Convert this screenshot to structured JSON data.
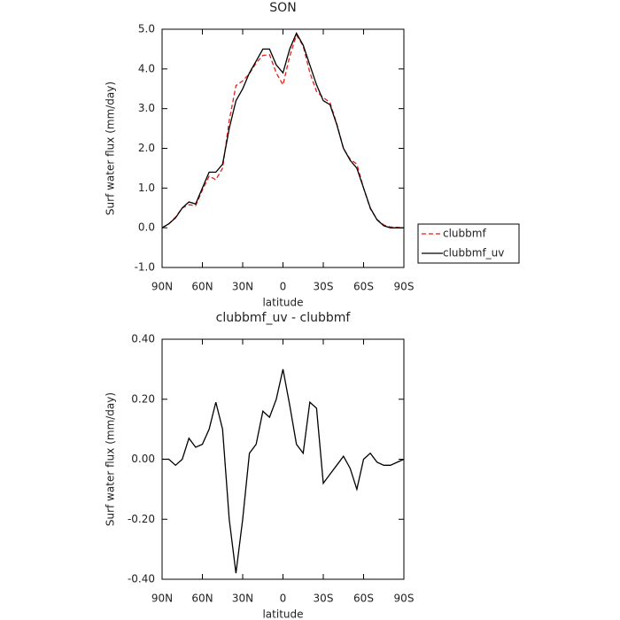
{
  "chart_data": [
    {
      "type": "line",
      "title": "SON",
      "xlabel": "latitude",
      "ylabel": "Surf water flux (mm/day)",
      "x": [
        90,
        85,
        80,
        75,
        70,
        65,
        60,
        55,
        50,
        45,
        40,
        35,
        30,
        25,
        20,
        15,
        10,
        5,
        0,
        -5,
        -10,
        -15,
        -20,
        -25,
        -30,
        -35,
        -40,
        -45,
        -50,
        -55,
        -60,
        -65,
        -70,
        -75,
        -80,
        -85,
        -90
      ],
      "series": [
        {
          "name": "clubbmf",
          "color": "#e0201b",
          "dash": true,
          "values": [
            0,
            0.1,
            0.27,
            0.5,
            0.58,
            0.56,
            0.95,
            1.3,
            1.21,
            1.5,
            2.7,
            3.58,
            3.7,
            3.88,
            4.15,
            4.34,
            4.36,
            3.9,
            3.6,
            4.32,
            4.85,
            4.58,
            3.91,
            3.43,
            3.28,
            3.15,
            2.62,
            1.99,
            1.73,
            1.6,
            1.0,
            0.48,
            0.21,
            0.07,
            0.02,
            0.01,
            0
          ]
        },
        {
          "name": "clubbmf_uv",
          "color": "#000000",
          "dash": false,
          "values": [
            0,
            0.1,
            0.25,
            0.5,
            0.65,
            0.6,
            1.0,
            1.4,
            1.4,
            1.6,
            2.5,
            3.2,
            3.5,
            3.9,
            4.2,
            4.5,
            4.5,
            4.1,
            3.9,
            4.5,
            4.9,
            4.6,
            4.1,
            3.6,
            3.2,
            3.1,
            2.6,
            2.0,
            1.7,
            1.5,
            1.0,
            0.5,
            0.2,
            0.05,
            0,
            0,
            0
          ]
        }
      ],
      "xlim": [
        90,
        -90
      ],
      "xticks": [
        {
          "value": 90,
          "label": "90N"
        },
        {
          "value": 60,
          "label": "60N"
        },
        {
          "value": 30,
          "label": "30N"
        },
        0,
        {
          "value": -30,
          "label": "30S"
        },
        {
          "value": -60,
          "label": "60S"
        },
        {
          "value": -90,
          "label": "90S"
        }
      ],
      "ylim": [
        -1,
        5
      ],
      "yticks": [
        {
          "value": -1,
          "label": "-1.0"
        },
        {
          "value": 0,
          "label": "0.0"
        },
        {
          "value": 1,
          "label": "1.0"
        },
        {
          "value": 2,
          "label": "2.0"
        },
        {
          "value": 3,
          "label": "3.0"
        },
        {
          "value": 4,
          "label": "4.0"
        },
        {
          "value": 5,
          "label": "5.0"
        }
      ],
      "legend": "right"
    },
    {
      "type": "line",
      "title": "clubbmf_uv - clubbmf",
      "xlabel": "latitude",
      "ylabel": "Surf water flux (mm/day)",
      "x": [
        90,
        85,
        80,
        75,
        70,
        65,
        60,
        55,
        50,
        45,
        40,
        35,
        30,
        25,
        20,
        15,
        10,
        5,
        0,
        -5,
        -10,
        -15,
        -20,
        -25,
        -30,
        -35,
        -40,
        -45,
        -50,
        -55,
        -60,
        -65,
        -70,
        -75,
        -80,
        -85,
        -90
      ],
      "series": [
        {
          "color": "#000000",
          "dash": false,
          "values": [
            0,
            0,
            -0.02,
            0,
            0.07,
            0.04,
            0.05,
            0.1,
            0.19,
            0.1,
            -0.2,
            -0.38,
            -0.2,
            0.02,
            0.05,
            0.16,
            0.14,
            0.2,
            0.3,
            0.18,
            0.05,
            0.02,
            0.19,
            0.17,
            -0.08,
            -0.05,
            -0.02,
            0.01,
            -0.03,
            -0.1,
            0,
            0.02,
            -0.01,
            -0.02,
            -0.02,
            -0.01,
            0
          ]
        }
      ],
      "xlim": [
        90,
        -90
      ],
      "xticks": [
        {
          "value": 90,
          "label": "90N"
        },
        {
          "value": 60,
          "label": "60N"
        },
        {
          "value": 30,
          "label": "30N"
        },
        0,
        {
          "value": -30,
          "label": "30S"
        },
        {
          "value": -60,
          "label": "60S"
        },
        {
          "value": -90,
          "label": "90S"
        }
      ],
      "ylim": [
        -0.4,
        0.4
      ],
      "yticks": [
        {
          "value": -0.4,
          "label": "-0.40"
        },
        {
          "value": -0.2,
          "label": "-0.20"
        },
        {
          "value": 0,
          "label": "0.00"
        },
        {
          "value": 0.2,
          "label": "0.20"
        },
        {
          "value": 0.4,
          "label": "0.40"
        }
      ]
    }
  ]
}
